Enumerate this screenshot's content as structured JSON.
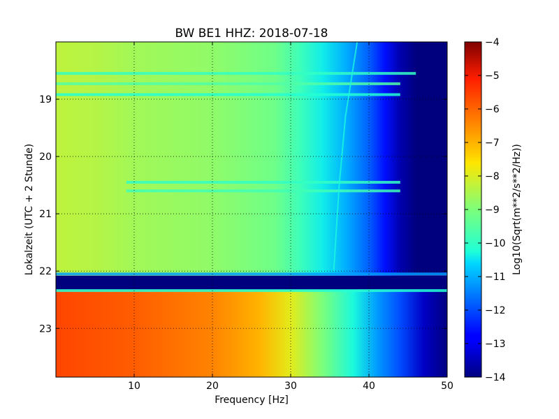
{
  "chart_data": {
    "type": "heatmap",
    "title": "BW BE1 HHZ: 2018-07-18",
    "xlabel": "Frequency [Hz]",
    "ylabel": "Lokalzeit (UTC + 2 Stunde)",
    "colorbar_label": "Log10(Sqrt(m**2/s**2/Hz))",
    "xlim": [
      0,
      50
    ],
    "ylim_hours": [
      18.0,
      23.85
    ],
    "y_inverted": true,
    "x_ticks": [
      10,
      20,
      30,
      40,
      50
    ],
    "x_tick_labels": [
      "10",
      "20",
      "30",
      "40",
      "50"
    ],
    "y_ticks": [
      19,
      20,
      21,
      22,
      23
    ],
    "y_tick_labels": [
      "19",
      "20",
      "21",
      "22",
      "23"
    ],
    "color_range": [
      -14,
      -4
    ],
    "colorbar_ticks": [
      -4,
      -5,
      -6,
      -7,
      -8,
      -9,
      -10,
      -11,
      -12,
      -13,
      -14
    ],
    "colorbar_tick_labels": [
      "−4",
      "−5",
      "−6",
      "−7",
      "−8",
      "−9",
      "−10",
      "−11",
      "−12",
      "−13",
      "−14"
    ],
    "colormap": "jet",
    "grid": true,
    "segments": [
      {
        "name": "upper",
        "y_range": [
          18.0,
          22.08
        ],
        "frequency_profile": [
          {
            "hz": 0,
            "value": -8.3
          },
          {
            "hz": 5,
            "value": -8.4
          },
          {
            "hz": 10,
            "value": -8.6
          },
          {
            "hz": 20,
            "value": -8.8
          },
          {
            "hz": 28,
            "value": -9.2
          },
          {
            "hz": 31,
            "value": -9.8
          },
          {
            "hz": 34,
            "value": -10.4
          },
          {
            "hz": 37,
            "value": -11.0
          },
          {
            "hz": 40,
            "value": -11.8
          },
          {
            "hz": 42,
            "value": -12.6
          },
          {
            "hz": 44,
            "value": -13.6
          },
          {
            "hz": 46,
            "value": -14.0
          },
          {
            "hz": 50,
            "value": -14.0
          }
        ]
      },
      {
        "name": "gap",
        "y_range": [
          22.08,
          22.33
        ],
        "value": -14.0
      },
      {
        "name": "lower",
        "y_range": [
          22.33,
          23.85
        ],
        "frequency_profile": [
          {
            "hz": 0,
            "value": -5.6
          },
          {
            "hz": 10,
            "value": -5.9
          },
          {
            "hz": 20,
            "value": -6.4
          },
          {
            "hz": 26,
            "value": -7.0
          },
          {
            "hz": 30,
            "value": -7.9
          },
          {
            "hz": 34,
            "value": -9.0
          },
          {
            "hz": 38,
            "value": -10.3
          },
          {
            "hz": 41,
            "value": -11.2
          },
          {
            "hz": 44,
            "value": -12.0
          },
          {
            "hz": 47,
            "value": -13.4
          },
          {
            "hz": 50,
            "value": -14.0
          }
        ]
      }
    ],
    "stripes": [
      {
        "hour": 18.55,
        "hz_range": [
          0,
          46
        ],
        "value": -10.0
      },
      {
        "hour": 18.73,
        "hz_range": [
          0,
          44
        ],
        "value": -9.6
      },
      {
        "hour": 18.92,
        "hz_range": [
          0,
          44
        ],
        "value": -10.2
      },
      {
        "hour": 20.45,
        "hz_range": [
          9,
          44
        ],
        "value": -10.0
      },
      {
        "hour": 20.6,
        "hz_range": [
          9,
          44
        ],
        "value": -9.8
      },
      {
        "hour": 22.05,
        "hz_range": [
          0,
          50
        ],
        "value": -11.2
      },
      {
        "hour": 22.34,
        "hz_range": [
          0,
          50
        ],
        "value": -10.2
      }
    ],
    "drift_line": {
      "points": [
        [
          38.5,
          18.0
        ],
        [
          37.0,
          19.3
        ],
        [
          36.2,
          20.5
        ],
        [
          35.5,
          22.0
        ]
      ],
      "value": -10.3
    }
  }
}
